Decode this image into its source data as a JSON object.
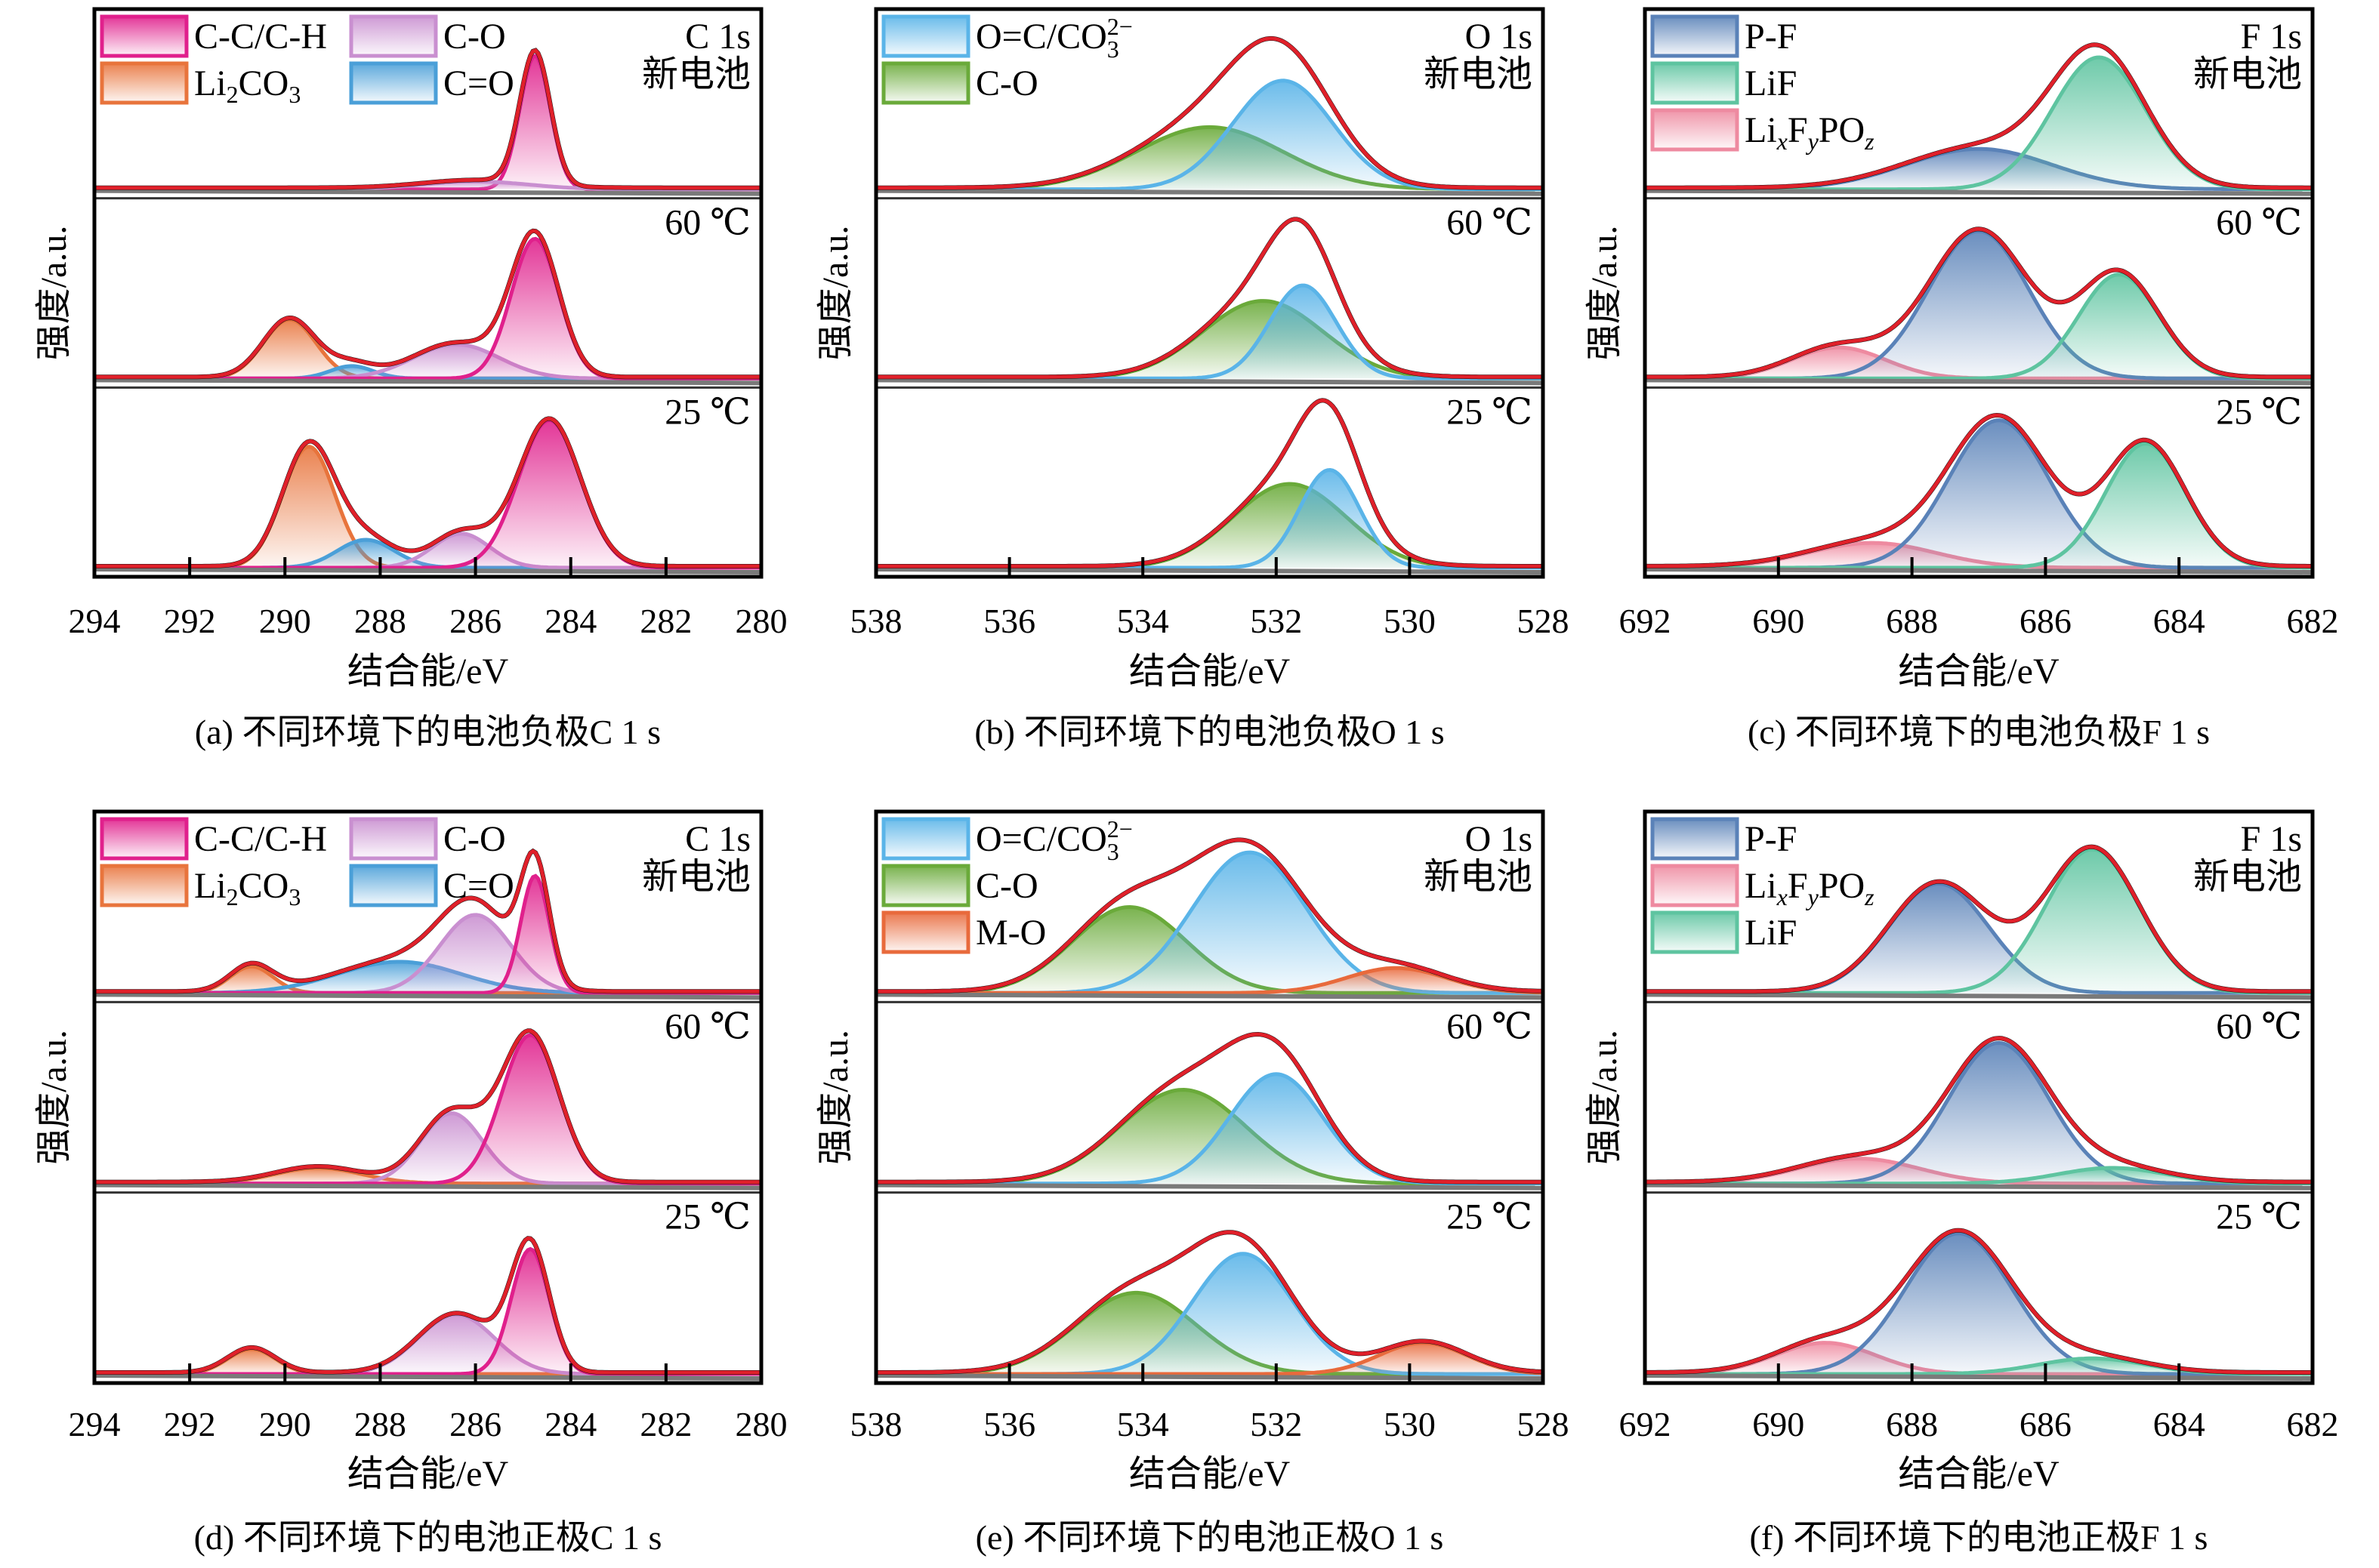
{
  "figure": {
    "ylabel": "强度/a.u.",
    "xlabel": "结合能/eV",
    "spectrum_labels": [
      "新电池",
      "60 ℃",
      "25 ℃"
    ]
  },
  "colors": {
    "envelope": "#e0202a",
    "raw": "#111111",
    "baseline": "#7a7a7a",
    "C-C/C-H": "#e0208c",
    "C-O_c": "#c98fd0",
    "Li2CO3": "#e8743c",
    "C=O": "#4a9fd8",
    "O=C/CO3": "#5ab4e8",
    "C-O_o": "#6aaa3a",
    "M-O": "#e86a3c",
    "P-F": "#5a82b8",
    "LiF": "#5ec4a0",
    "LixFyPOz": "#ee8aa0"
  },
  "chart_data": [
    {
      "id": "a",
      "type": "area",
      "title": "C 1s",
      "caption": "(a) 不同环境下的电池负极C 1 s",
      "xlabel": "结合能/eV",
      "ylabel": "强度/a.u.",
      "xlim": [
        294,
        280
      ],
      "xticks": [
        294,
        292,
        290,
        288,
        286,
        284,
        282,
        280
      ],
      "legend": {
        "placement": "top-left",
        "columns": 2,
        "entries": [
          {
            "key": "C-C/C-H",
            "label": "C-C/C-H"
          },
          {
            "key": "C-O_c",
            "label": "C-O"
          },
          {
            "key": "Li2CO3",
            "label": "Li",
            "sub": "2",
            "rest": "CO",
            "sub2": "3"
          },
          {
            "key": "C=O",
            "label": "C=O"
          }
        ]
      },
      "annotation_lines": [
        "C 1s",
        "新电池"
      ],
      "spectra": [
        {
          "label": "新电池",
          "components": [
            {
              "key": "C-C/C-H",
              "center": 284.75,
              "amp": 0.86,
              "sigma": 0.32
            },
            {
              "key": "C-O_c",
              "center": 286.0,
              "amp": 0.05,
              "sigma": 1.1
            },
            {
              "key": "Li2CO3",
              "center": 289.5,
              "amp": 0.0,
              "sigma": 0.6
            }
          ]
        },
        {
          "label": "60 ℃",
          "components": [
            {
              "key": "Li2CO3",
              "center": 289.9,
              "amp": 0.38,
              "sigma": 0.55
            },
            {
              "key": "C=O",
              "center": 288.6,
              "amp": 0.08,
              "sigma": 0.45
            },
            {
              "key": "C-O_c",
              "center": 286.4,
              "amp": 0.22,
              "sigma": 0.9
            },
            {
              "key": "C-C/C-H",
              "center": 284.75,
              "amp": 0.9,
              "sigma": 0.5
            }
          ]
        },
        {
          "label": "25 ℃",
          "components": [
            {
              "key": "Li2CO3",
              "center": 289.5,
              "amp": 0.78,
              "sigma": 0.55
            },
            {
              "key": "C=O",
              "center": 288.3,
              "amp": 0.18,
              "sigma": 0.6
            },
            {
              "key": "C-O_c",
              "center": 286.3,
              "amp": 0.22,
              "sigma": 0.6
            },
            {
              "key": "C-C/C-H",
              "center": 284.45,
              "amp": 0.95,
              "sigma": 0.65
            }
          ]
        }
      ]
    },
    {
      "id": "b",
      "type": "area",
      "title": "O 1s",
      "caption": "(b) 不同环境下的电池负极O 1 s",
      "xlabel": "结合能/eV",
      "ylabel": "强度/a.u.",
      "xlim": [
        538,
        528
      ],
      "xticks": [
        538,
        536,
        534,
        532,
        530,
        528
      ],
      "legend": {
        "placement": "top-left",
        "columns": 1,
        "entries": [
          {
            "key": "O=C/CO3",
            "label": "O=C/CO",
            "sub": "3",
            "sup": "2−"
          },
          {
            "key": "C-O_o",
            "label": "C-O"
          }
        ]
      },
      "annotation_lines": [
        "O 1s",
        "新电池"
      ],
      "spectra": [
        {
          "label": "新电池",
          "components": [
            {
              "key": "C-O_o",
              "center": 533.0,
              "amp": 0.4,
              "sigma": 1.1
            },
            {
              "key": "O=C/CO3",
              "center": 531.9,
              "amp": 0.7,
              "sigma": 0.75
            }
          ]
        },
        {
          "label": "60 ℃",
          "components": [
            {
              "key": "C-O_o",
              "center": 532.2,
              "amp": 0.5,
              "sigma": 0.9
            },
            {
              "key": "O=C/CO3",
              "center": 531.6,
              "amp": 0.6,
              "sigma": 0.5
            }
          ]
        },
        {
          "label": "25 ℃",
          "components": [
            {
              "key": "C-O_o",
              "center": 531.8,
              "amp": 0.54,
              "sigma": 0.85
            },
            {
              "key": "O=C/CO3",
              "center": 531.2,
              "amp": 0.63,
              "sigma": 0.45
            }
          ]
        }
      ]
    },
    {
      "id": "c",
      "type": "area",
      "title": "F 1s",
      "caption": "(c) 不同环境下的电池负极F 1 s",
      "xlabel": "结合能/eV",
      "ylabel": "强度/a.u.",
      "xlim": [
        692,
        682
      ],
      "xticks": [
        692,
        690,
        688,
        686,
        684,
        682
      ],
      "legend": {
        "placement": "top-left",
        "columns": 1,
        "entries": [
          {
            "key": "P-F",
            "label": "P-F"
          },
          {
            "key": "LiF",
            "label": "LiF"
          },
          {
            "key": "LixFyPOz",
            "label": "LixFyPOz"
          }
        ]
      },
      "annotation_lines": [
        "F 1s",
        "新电池"
      ],
      "spectra": [
        {
          "label": "新电池",
          "components": [
            {
              "key": "P-F",
              "center": 687.0,
              "amp": 0.26,
              "sigma": 1.1
            },
            {
              "key": "LiF",
              "center": 685.2,
              "amp": 0.85,
              "sigma": 0.7
            }
          ]
        },
        {
          "label": "60 ℃",
          "components": [
            {
              "key": "LixFyPOz",
              "center": 689.1,
              "amp": 0.2,
              "sigma": 0.7
            },
            {
              "key": "P-F",
              "center": 687.0,
              "amp": 0.95,
              "sigma": 0.75
            },
            {
              "key": "LiF",
              "center": 684.9,
              "amp": 0.67,
              "sigma": 0.6
            }
          ]
        },
        {
          "label": "25 ℃",
          "components": [
            {
              "key": "LixFyPOz",
              "center": 688.6,
              "amp": 0.16,
              "sigma": 0.95
            },
            {
              "key": "P-F",
              "center": 686.7,
              "amp": 0.95,
              "sigma": 0.75
            },
            {
              "key": "LiF",
              "center": 684.5,
              "amp": 0.8,
              "sigma": 0.6
            }
          ]
        }
      ]
    },
    {
      "id": "d",
      "type": "area",
      "title": "C 1s",
      "caption": "(d) 不同环境下的电池正极C 1 s",
      "xlabel": "结合能/eV",
      "ylabel": "强度/a.u.",
      "xlim": [
        294,
        280
      ],
      "xticks": [
        294,
        292,
        290,
        288,
        286,
        284,
        282,
        280
      ],
      "legend": {
        "placement": "top-left",
        "columns": 2,
        "entries": [
          {
            "key": "C-C/C-H",
            "label": "C-C/C-H"
          },
          {
            "key": "C-O_c",
            "label": "C-O"
          },
          {
            "key": "Li2CO3",
            "label": "Li",
            "sub": "2",
            "rest": "CO",
            "sub2": "3"
          },
          {
            "key": "C=O",
            "label": "C=O"
          }
        ]
      },
      "annotation_lines": [
        "C 1s",
        "新电池"
      ],
      "spectra": [
        {
          "label": "新电池",
          "components": [
            {
              "key": "Li2CO3",
              "center": 290.7,
              "amp": 0.17,
              "sigma": 0.45
            },
            {
              "key": "C=O",
              "center": 287.6,
              "amp": 0.2,
              "sigma": 1.3
            },
            {
              "key": "C-O_c",
              "center": 286.0,
              "amp": 0.5,
              "sigma": 0.75
            },
            {
              "key": "C-C/C-H",
              "center": 284.75,
              "amp": 0.75,
              "sigma": 0.3
            }
          ]
        },
        {
          "label": "60 ℃",
          "components": [
            {
              "key": "Li2CO3",
              "center": 289.3,
              "amp": 0.1,
              "sigma": 0.9
            },
            {
              "key": "C-O_c",
              "center": 286.5,
              "amp": 0.45,
              "sigma": 0.65
            },
            {
              "key": "C-C/C-H",
              "center": 284.85,
              "amp": 0.95,
              "sigma": 0.6
            }
          ]
        },
        {
          "label": "25 ℃",
          "components": [
            {
              "key": "Li2CO3",
              "center": 290.7,
              "amp": 0.16,
              "sigma": 0.5
            },
            {
              "key": "C-O_c",
              "center": 286.4,
              "amp": 0.38,
              "sigma": 0.8
            },
            {
              "key": "C-C/C-H",
              "center": 284.85,
              "amp": 0.8,
              "sigma": 0.4
            }
          ]
        }
      ]
    },
    {
      "id": "e",
      "type": "area",
      "title": "O 1s",
      "caption": "(e) 不同环境下的电池正极O 1 s",
      "xlabel": "结合能/eV",
      "ylabel": "强度/a.u.",
      "xlim": [
        538,
        528
      ],
      "xticks": [
        538,
        536,
        534,
        532,
        530,
        528
      ],
      "legend": {
        "placement": "top-left",
        "columns": 1,
        "entries": [
          {
            "key": "O=C/CO3",
            "label": "O=C/CO",
            "sub": "3",
            "sup": "2−"
          },
          {
            "key": "C-O_o",
            "label": "C-O"
          },
          {
            "key": "M-O",
            "label": "M-O"
          }
        ]
      },
      "annotation_lines": [
        "O 1s",
        "新电池"
      ],
      "spectra": [
        {
          "label": "新电池",
          "components": [
            {
              "key": "C-O_o",
              "center": 534.2,
              "amp": 0.55,
              "sigma": 0.85
            },
            {
              "key": "O=C/CO3",
              "center": 532.4,
              "amp": 0.9,
              "sigma": 0.85
            },
            {
              "key": "M-O",
              "center": 530.2,
              "amp": 0.16,
              "sigma": 0.75
            }
          ]
        },
        {
          "label": "60 ℃",
          "components": [
            {
              "key": "C-O_o",
              "center": 533.4,
              "amp": 0.6,
              "sigma": 0.95
            },
            {
              "key": "O=C/CO3",
              "center": 532.0,
              "amp": 0.7,
              "sigma": 0.7
            }
          ]
        },
        {
          "label": "25 ℃",
          "components": [
            {
              "key": "C-O_o",
              "center": 534.1,
              "amp": 0.52,
              "sigma": 0.9
            },
            {
              "key": "O=C/CO3",
              "center": 532.5,
              "amp": 0.77,
              "sigma": 0.75
            },
            {
              "key": "M-O",
              "center": 529.8,
              "amp": 0.2,
              "sigma": 0.65
            }
          ]
        }
      ]
    },
    {
      "id": "f",
      "type": "area",
      "title": "F 1s",
      "caption": "(f) 不同环境下的电池正极F 1 s",
      "xlabel": "结合能/eV",
      "ylabel": "强度/a.u.",
      "xlim": [
        692,
        682
      ],
      "xticks": [
        692,
        690,
        688,
        686,
        684,
        682
      ],
      "legend": {
        "placement": "top-left",
        "columns": 1,
        "entries": [
          {
            "key": "P-F",
            "label": "P-F"
          },
          {
            "key": "LixFyPOz",
            "label": "LixFyPOz"
          },
          {
            "key": "LiF",
            "label": "LiF"
          }
        ]
      },
      "annotation_lines": [
        "F 1s",
        "新电池"
      ],
      "spectra": [
        {
          "label": "新电池",
          "components": [
            {
              "key": "P-F",
              "center": 687.6,
              "amp": 0.7,
              "sigma": 0.75
            },
            {
              "key": "LiF",
              "center": 685.3,
              "amp": 0.92,
              "sigma": 0.7
            }
          ]
        },
        {
          "label": "60 ℃",
          "components": [
            {
              "key": "LixFyPOz",
              "center": 688.8,
              "amp": 0.16,
              "sigma": 0.9
            },
            {
              "key": "P-F",
              "center": 686.7,
              "amp": 0.9,
              "sigma": 0.75
            },
            {
              "key": "LiF",
              "center": 685.0,
              "amp": 0.1,
              "sigma": 0.8
            }
          ]
        },
        {
          "label": "25 ℃",
          "components": [
            {
              "key": "LixFyPOz",
              "center": 689.3,
              "amp": 0.2,
              "sigma": 0.75
            },
            {
              "key": "P-F",
              "center": 687.3,
              "amp": 0.9,
              "sigma": 0.8
            },
            {
              "key": "LiF",
              "center": 685.3,
              "amp": 0.1,
              "sigma": 0.8
            }
          ]
        }
      ]
    }
  ]
}
